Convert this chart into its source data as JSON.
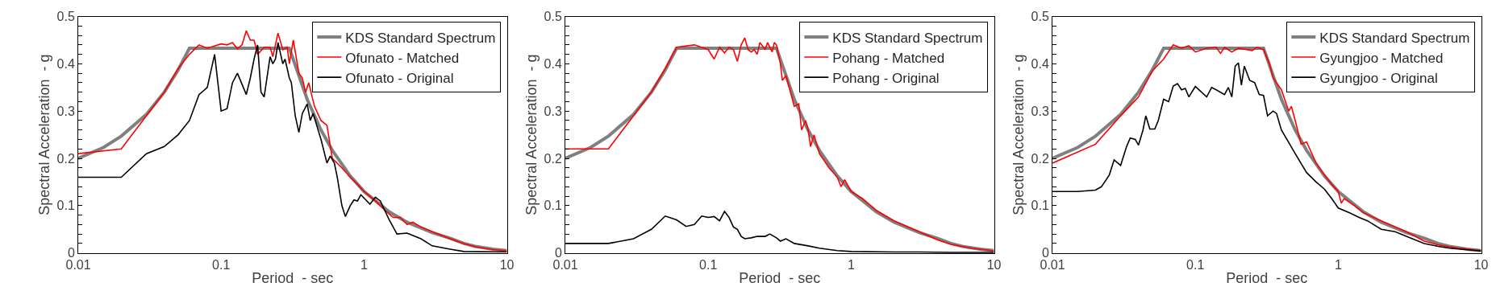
{
  "chart_data": [
    {
      "type": "line",
      "xlabel": "Period  - sec",
      "ylabel": "Spectral Acceleration  - g",
      "log": "x",
      "xlim": [
        0.01,
        10
      ],
      "xticks": [
        0.01,
        0.1,
        1,
        10
      ],
      "ylim": [
        0,
        0.5
      ],
      "yticks": [
        0,
        {
          "value": 0.02,
          "label": null
        },
        {
          "value": 0.04,
          "label": null
        },
        {
          "value": 0.06,
          "label": null
        },
        {
          "value": 0.08,
          "label": null
        },
        0.1,
        {
          "value": 0.12,
          "label": null
        },
        {
          "value": 0.14,
          "label": null
        },
        {
          "value": 0.16,
          "label": null
        },
        {
          "value": 0.18,
          "label": null
        },
        0.2,
        {
          "value": 0.22,
          "label": null
        },
        {
          "value": 0.24,
          "label": null
        },
        {
          "value": 0.26,
          "label": null
        },
        {
          "value": 0.28,
          "label": null
        },
        0.3,
        {
          "value": 0.32,
          "label": null
        },
        {
          "value": 0.34,
          "label": null
        },
        {
          "value": 0.36,
          "label": null
        },
        {
          "value": 0.38,
          "label": null
        },
        0.4,
        {
          "value": 0.42,
          "label": null
        },
        {
          "value": 0.44,
          "label": null
        },
        {
          "value": 0.46,
          "label": null
        },
        {
          "value": 0.48,
          "label": null
        },
        0.5
      ],
      "legend": "top right",
      "series": [
        {
          "name": "KDS Standard Spectrum",
          "color": "#808080",
          "x": [
            0.01,
            0.015,
            0.02,
            0.03,
            0.04,
            0.05,
            0.06,
            0.3,
            0.4,
            0.5,
            0.6,
            0.8,
            1,
            1.5,
            2,
            3,
            4,
            5,
            6,
            8,
            10
          ],
          "values": [
            0.2,
            0.223,
            0.247,
            0.293,
            0.34,
            0.387,
            0.433,
            0.433,
            0.325,
            0.26,
            0.217,
            0.163,
            0.13,
            0.087,
            0.065,
            0.043,
            0.031,
            0.02,
            0.014,
            0.008,
            0.005
          ]
        },
        {
          "name": "Ofunato - Matched",
          "color": "#ff0000",
          "x": [
            0.01,
            0.02,
            0.03,
            0.04,
            0.05,
            0.06,
            0.07,
            0.08,
            0.1,
            0.11,
            0.12,
            0.13,
            0.14,
            0.15,
            0.16,
            0.17,
            0.18,
            0.2,
            0.22,
            0.23,
            0.25,
            0.27,
            0.29,
            0.3,
            0.32,
            0.35,
            0.37,
            0.39,
            0.41,
            0.45,
            0.5,
            0.55,
            0.6,
            0.7,
            0.8,
            0.9,
            1.0,
            1.2,
            1.4,
            1.6,
            1.8,
            2,
            2.2,
            2.5,
            3,
            4,
            5,
            6,
            8,
            10
          ],
          "values": [
            0.21,
            0.22,
            0.29,
            0.34,
            0.39,
            0.42,
            0.44,
            0.433,
            0.442,
            0.44,
            0.445,
            0.432,
            0.44,
            0.47,
            0.45,
            0.45,
            0.42,
            0.435,
            0.435,
            0.415,
            0.465,
            0.43,
            0.435,
            0.4,
            0.45,
            0.38,
            0.37,
            0.34,
            0.36,
            0.31,
            0.28,
            0.27,
            0.2,
            0.18,
            0.16,
            0.145,
            0.13,
            0.11,
            0.09,
            0.075,
            0.075,
            0.06,
            0.065,
            0.055,
            0.045,
            0.03,
            0.02,
            0.013,
            0.007,
            0.004
          ]
        },
        {
          "name": "Ofunato - Original",
          "color": "#000000",
          "x": [
            0.01,
            0.02,
            0.03,
            0.04,
            0.05,
            0.06,
            0.07,
            0.08,
            0.09,
            0.1,
            0.11,
            0.12,
            0.13,
            0.15,
            0.16,
            0.17,
            0.18,
            0.19,
            0.2,
            0.22,
            0.23,
            0.24,
            0.25,
            0.27,
            0.28,
            0.3,
            0.31,
            0.33,
            0.35,
            0.37,
            0.4,
            0.42,
            0.44,
            0.5,
            0.55,
            0.58,
            0.62,
            0.65,
            0.7,
            0.74,
            0.8,
            0.85,
            0.9,
            0.95,
            1.1,
            1.2,
            1.3,
            1.5,
            1.7,
            2,
            2.5,
            3,
            4,
            5,
            10
          ],
          "values": [
            0.16,
            0.16,
            0.21,
            0.225,
            0.25,
            0.28,
            0.335,
            0.35,
            0.42,
            0.3,
            0.305,
            0.36,
            0.38,
            0.335,
            0.37,
            0.41,
            0.44,
            0.34,
            0.33,
            0.415,
            0.4,
            0.41,
            0.445,
            0.4,
            0.41,
            0.37,
            0.36,
            0.29,
            0.255,
            0.295,
            0.315,
            0.28,
            0.295,
            0.24,
            0.19,
            0.205,
            0.19,
            0.16,
            0.1,
            0.077,
            0.1,
            0.112,
            0.11,
            0.123,
            0.103,
            0.118,
            0.11,
            0.07,
            0.04,
            0.042,
            0.03,
            0.015,
            0.008,
            0.003,
            0.002
          ]
        }
      ]
    },
    {
      "type": "line",
      "xlabel": "Period  - sec",
      "ylabel": "Spectral Acceleration  - g",
      "log": "x",
      "xlim": [
        0.01,
        10
      ],
      "xticks": [
        0.01,
        0.1,
        1,
        10
      ],
      "ylim": [
        0,
        0.5
      ],
      "yticks": [
        0,
        {
          "value": 0.02,
          "label": null
        },
        {
          "value": 0.04,
          "label": null
        },
        {
          "value": 0.06,
          "label": null
        },
        {
          "value": 0.08,
          "label": null
        },
        0.1,
        {
          "value": 0.12,
          "label": null
        },
        {
          "value": 0.14,
          "label": null
        },
        {
          "value": 0.16,
          "label": null
        },
        {
          "value": 0.18,
          "label": null
        },
        0.2,
        {
          "value": 0.22,
          "label": null
        },
        {
          "value": 0.24,
          "label": null
        },
        {
          "value": 0.26,
          "label": null
        },
        {
          "value": 0.28,
          "label": null
        },
        0.3,
        {
          "value": 0.32,
          "label": null
        },
        {
          "value": 0.34,
          "label": null
        },
        {
          "value": 0.36,
          "label": null
        },
        {
          "value": 0.38,
          "label": null
        },
        0.4,
        {
          "value": 0.42,
          "label": null
        },
        {
          "value": 0.44,
          "label": null
        },
        {
          "value": 0.46,
          "label": null
        },
        {
          "value": 0.48,
          "label": null
        },
        0.5
      ],
      "legend": "top right",
      "series": [
        {
          "name": "KDS Standard Spectrum",
          "color": "#808080",
          "x": [
            0.01,
            0.015,
            0.02,
            0.03,
            0.04,
            0.05,
            0.06,
            0.3,
            0.4,
            0.5,
            0.6,
            0.8,
            1,
            1.5,
            2,
            3,
            4,
            5,
            6,
            8,
            10
          ],
          "values": [
            0.2,
            0.223,
            0.247,
            0.293,
            0.34,
            0.387,
            0.433,
            0.433,
            0.325,
            0.26,
            0.217,
            0.163,
            0.13,
            0.087,
            0.065,
            0.043,
            0.031,
            0.02,
            0.014,
            0.008,
            0.005
          ]
        },
        {
          "name": "Pohang - Matched",
          "color": "#ff0000",
          "x": [
            0.01,
            0.02,
            0.03,
            0.04,
            0.05,
            0.06,
            0.08,
            0.1,
            0.11,
            0.12,
            0.13,
            0.14,
            0.15,
            0.16,
            0.17,
            0.18,
            0.19,
            0.2,
            0.21,
            0.22,
            0.23,
            0.25,
            0.26,
            0.28,
            0.29,
            0.3,
            0.32,
            0.33,
            0.35,
            0.4,
            0.43,
            0.45,
            0.48,
            0.5,
            0.52,
            0.55,
            0.6,
            0.7,
            0.8,
            0.85,
            0.9,
            1,
            1.2,
            1.5,
            2,
            3,
            4,
            5,
            7,
            10
          ],
          "values": [
            0.22,
            0.22,
            0.29,
            0.34,
            0.39,
            0.435,
            0.44,
            0.43,
            0.41,
            0.435,
            0.423,
            0.435,
            0.43,
            0.405,
            0.44,
            0.455,
            0.43,
            0.425,
            0.43,
            0.42,
            0.445,
            0.43,
            0.445,
            0.425,
            0.445,
            0.44,
            0.4,
            0.365,
            0.375,
            0.31,
            0.315,
            0.26,
            0.28,
            0.26,
            0.225,
            0.25,
            0.21,
            0.18,
            0.16,
            0.14,
            0.155,
            0.13,
            0.115,
            0.09,
            0.068,
            0.045,
            0.028,
            0.018,
            0.01,
            0.004
          ]
        },
        {
          "name": "Pohang - Original",
          "color": "#000000",
          "x": [
            0.01,
            0.02,
            0.03,
            0.04,
            0.05,
            0.06,
            0.07,
            0.08,
            0.09,
            0.1,
            0.11,
            0.12,
            0.13,
            0.14,
            0.15,
            0.16,
            0.17,
            0.18,
            0.2,
            0.22,
            0.25,
            0.27,
            0.3,
            0.32,
            0.35,
            0.4,
            0.5,
            0.6,
            0.8,
            1,
            2,
            3,
            5,
            10
          ],
          "values": [
            0.02,
            0.02,
            0.03,
            0.05,
            0.078,
            0.07,
            0.056,
            0.06,
            0.078,
            0.075,
            0.077,
            0.068,
            0.088,
            0.075,
            0.055,
            0.05,
            0.035,
            0.03,
            0.032,
            0.035,
            0.035,
            0.04,
            0.032,
            0.025,
            0.03,
            0.02,
            0.015,
            0.01,
            0.005,
            0.003,
            0.002,
            0.002,
            0.001,
            0.001
          ]
        }
      ]
    },
    {
      "type": "line",
      "xlabel": "Period  - sec",
      "ylabel": "Spectral Acceleration  - g",
      "log": "x",
      "xlim": [
        0.01,
        10
      ],
      "xticks": [
        0.01,
        0.1,
        1,
        10
      ],
      "ylim": [
        0,
        0.5
      ],
      "yticks": [
        0,
        {
          "value": 0.02,
          "label": null
        },
        {
          "value": 0.04,
          "label": null
        },
        {
          "value": 0.06,
          "label": null
        },
        {
          "value": 0.08,
          "label": null
        },
        0.1,
        {
          "value": 0.12,
          "label": null
        },
        {
          "value": 0.14,
          "label": null
        },
        {
          "value": 0.16,
          "label": null
        },
        {
          "value": 0.18,
          "label": null
        },
        0.2,
        {
          "value": 0.22,
          "label": null
        },
        {
          "value": 0.24,
          "label": null
        },
        {
          "value": 0.26,
          "label": null
        },
        {
          "value": 0.28,
          "label": null
        },
        0.3,
        {
          "value": 0.32,
          "label": null
        },
        {
          "value": 0.34,
          "label": null
        },
        {
          "value": 0.36,
          "label": null
        },
        {
          "value": 0.38,
          "label": null
        },
        0.4,
        {
          "value": 0.42,
          "label": null
        },
        {
          "value": 0.44,
          "label": null
        },
        {
          "value": 0.46,
          "label": null
        },
        {
          "value": 0.48,
          "label": null
        },
        0.5
      ],
      "legend": "top right",
      "series": [
        {
          "name": "KDS Standard Spectrum",
          "color": "#808080",
          "x": [
            0.01,
            0.015,
            0.02,
            0.03,
            0.04,
            0.05,
            0.06,
            0.3,
            0.4,
            0.5,
            0.6,
            0.8,
            1,
            1.5,
            2,
            3,
            4,
            5,
            6,
            8,
            10
          ],
          "values": [
            0.2,
            0.223,
            0.247,
            0.293,
            0.34,
            0.387,
            0.433,
            0.433,
            0.325,
            0.26,
            0.217,
            0.163,
            0.13,
            0.087,
            0.065,
            0.043,
            0.031,
            0.02,
            0.014,
            0.008,
            0.005
          ]
        },
        {
          "name": "Gyungjoo - Matched",
          "color": "#ff0000",
          "x": [
            0.01,
            0.02,
            0.03,
            0.04,
            0.05,
            0.06,
            0.07,
            0.08,
            0.09,
            0.1,
            0.12,
            0.14,
            0.15,
            0.16,
            0.18,
            0.2,
            0.25,
            0.27,
            0.3,
            0.33,
            0.35,
            0.4,
            0.45,
            0.47,
            0.5,
            0.55,
            0.6,
            0.7,
            0.8,
            0.9,
            1,
            1.05,
            1.1,
            1.3,
            1.5,
            2,
            2.5,
            3,
            4,
            5,
            7,
            10
          ],
          "values": [
            0.19,
            0.23,
            0.29,
            0.33,
            0.385,
            0.41,
            0.44,
            0.433,
            0.438,
            0.425,
            0.433,
            0.435,
            0.422,
            0.435,
            0.425,
            0.433,
            0.428,
            0.435,
            0.43,
            0.4,
            0.37,
            0.345,
            0.3,
            0.31,
            0.28,
            0.23,
            0.235,
            0.19,
            0.165,
            0.145,
            0.13,
            0.105,
            0.115,
            0.1,
            0.085,
            0.068,
            0.055,
            0.045,
            0.025,
            0.017,
            0.01,
            0.005
          ]
        },
        {
          "name": "Gyungjoo - Original",
          "color": "#000000",
          "x": [
            0.01,
            0.015,
            0.02,
            0.022,
            0.025,
            0.027,
            0.03,
            0.033,
            0.035,
            0.038,
            0.04,
            0.043,
            0.045,
            0.048,
            0.052,
            0.055,
            0.06,
            0.065,
            0.07,
            0.075,
            0.08,
            0.085,
            0.09,
            0.1,
            0.12,
            0.13,
            0.14,
            0.16,
            0.17,
            0.18,
            0.19,
            0.2,
            0.21,
            0.22,
            0.24,
            0.26,
            0.28,
            0.3,
            0.32,
            0.35,
            0.37,
            0.4,
            0.5,
            0.6,
            0.7,
            0.8,
            0.9,
            1,
            1.2,
            1.4,
            1.6,
            2,
            2.5,
            3,
            4,
            5,
            6,
            10
          ],
          "values": [
            0.13,
            0.13,
            0.133,
            0.14,
            0.165,
            0.197,
            0.185,
            0.225,
            0.243,
            0.24,
            0.228,
            0.26,
            0.29,
            0.262,
            0.262,
            0.28,
            0.325,
            0.32,
            0.353,
            0.358,
            0.345,
            0.348,
            0.33,
            0.352,
            0.33,
            0.35,
            0.345,
            0.335,
            0.35,
            0.33,
            0.395,
            0.402,
            0.355,
            0.395,
            0.365,
            0.36,
            0.335,
            0.333,
            0.29,
            0.3,
            0.295,
            0.26,
            0.21,
            0.17,
            0.15,
            0.135,
            0.115,
            0.095,
            0.085,
            0.075,
            0.068,
            0.05,
            0.045,
            0.035,
            0.02,
            0.014,
            0.01,
            0.004
          ]
        }
      ]
    }
  ]
}
